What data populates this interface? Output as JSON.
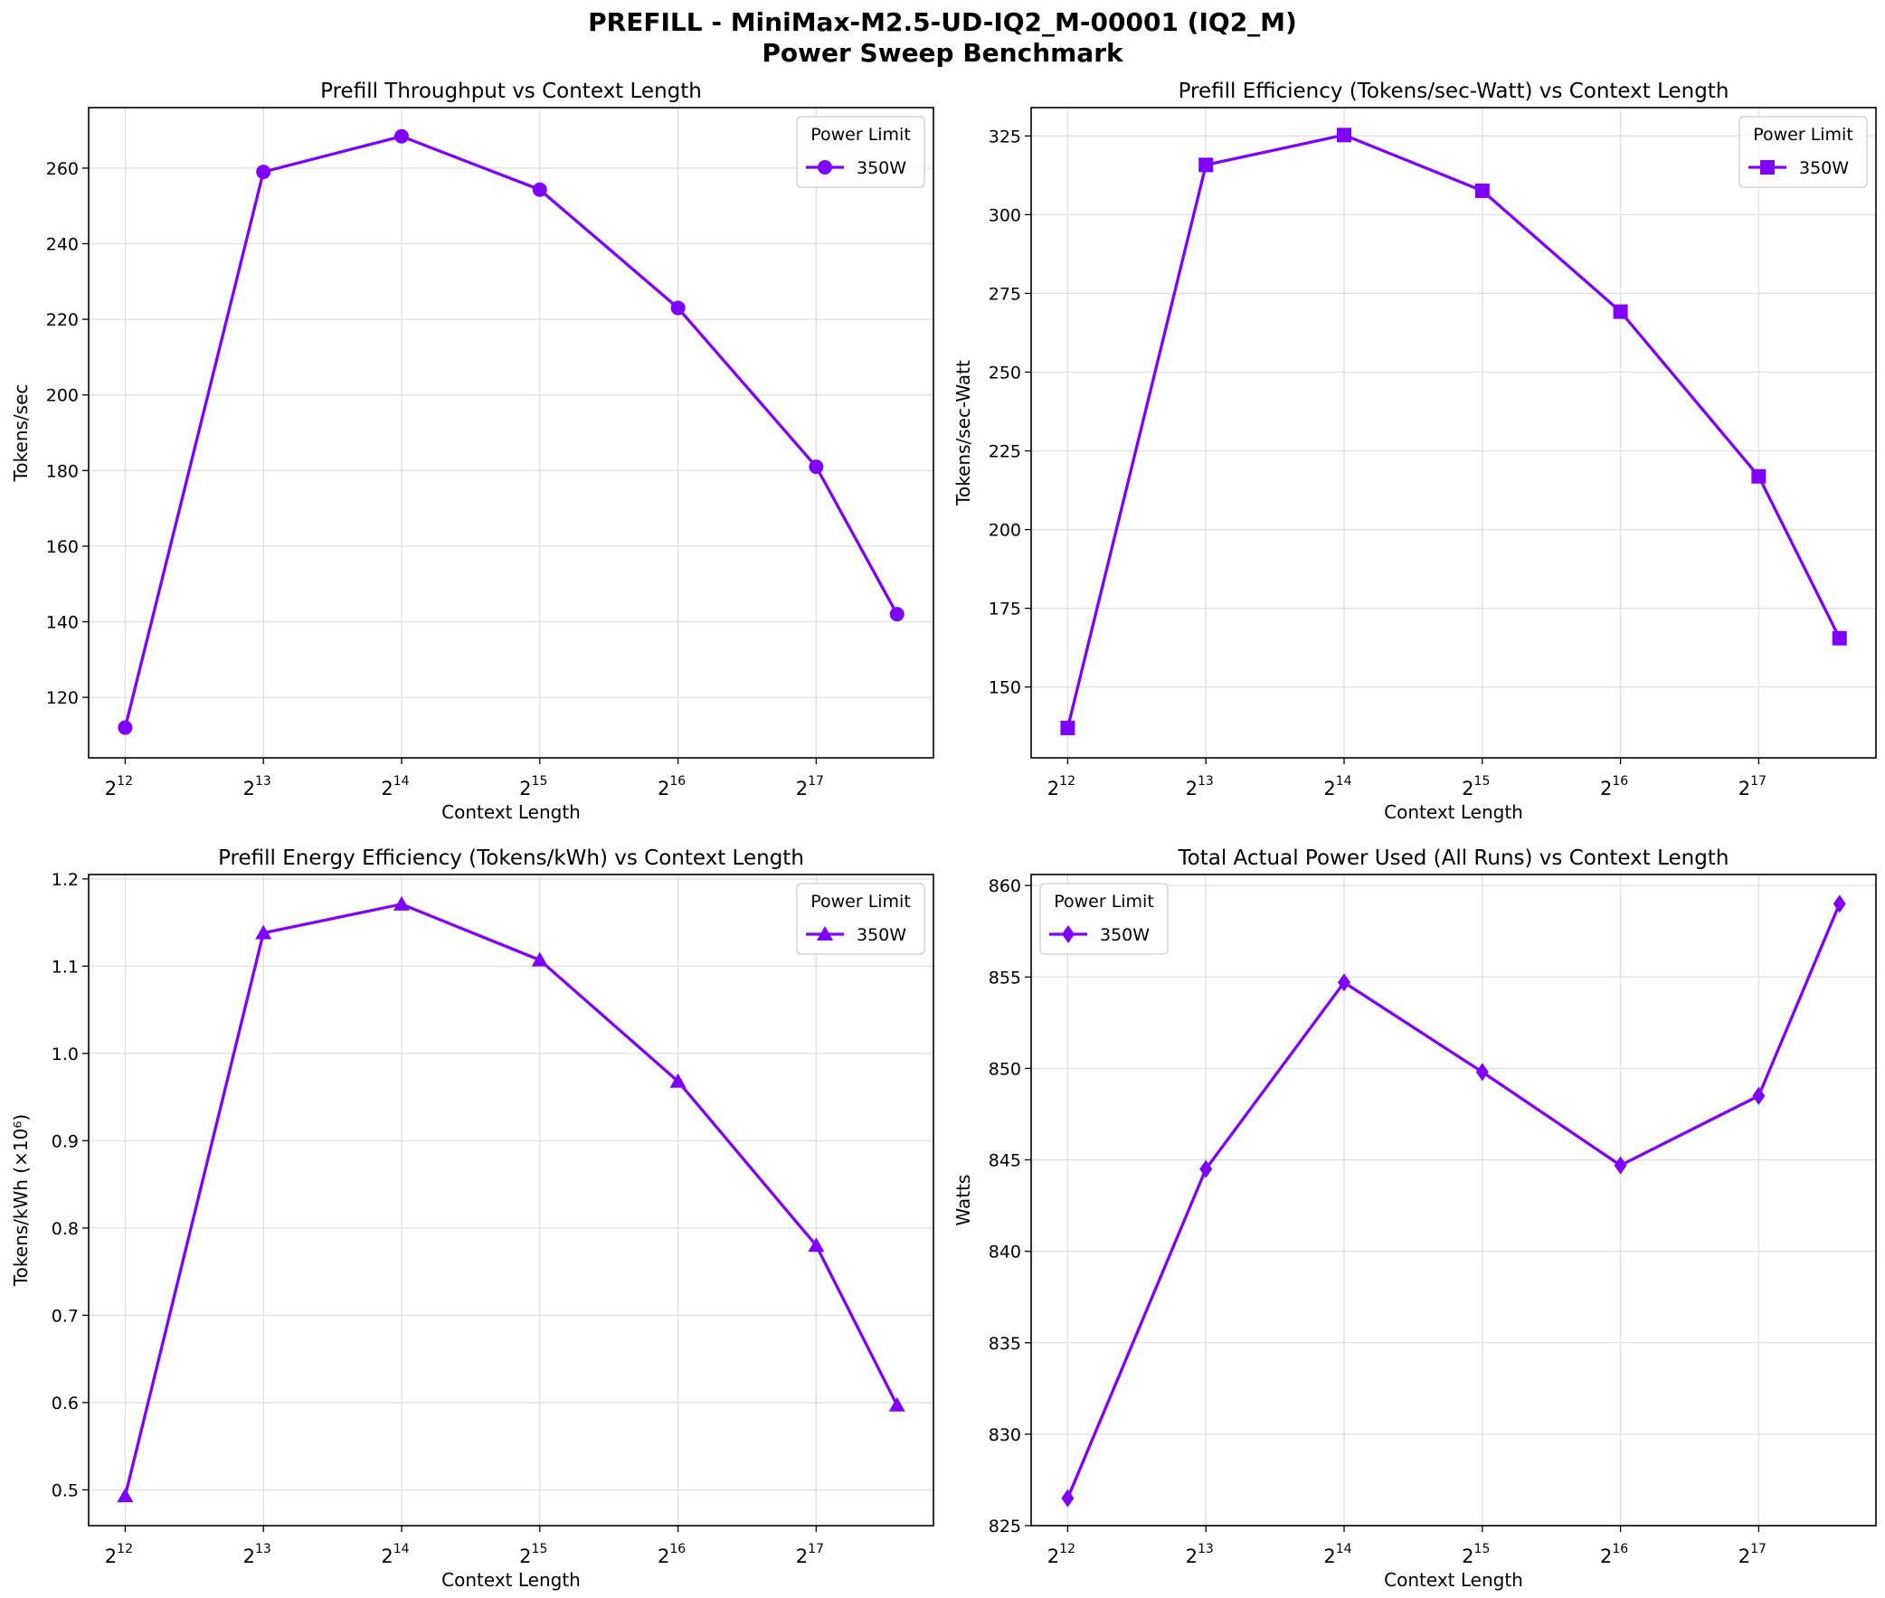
{
  "figure": {
    "title_line1": "PREFILL - MiniMax-M2.5-UD-IQ2_M-00001 (IQ2_M)",
    "title_line2": "Power Sweep Benchmark"
  },
  "colors": {
    "series": "#7f00ff",
    "grid": "#e0e0e0"
  },
  "chart_data": [
    {
      "type": "line",
      "title": "Prefill Throughput vs Context Length",
      "xlabel": "Context Length",
      "ylabel": "Tokens/sec",
      "xscale": "log2",
      "x": [
        4096,
        8192,
        16384,
        32768,
        65536,
        131072,
        196608
      ],
      "xticks": [
        {
          "base": "2",
          "exp": "12",
          "value": 4096
        },
        {
          "base": "2",
          "exp": "13",
          "value": 8192
        },
        {
          "base": "2",
          "exp": "14",
          "value": 16384
        },
        {
          "base": "2",
          "exp": "15",
          "value": 32768
        },
        {
          "base": "2",
          "exp": "16",
          "value": 65536
        },
        {
          "base": "2",
          "exp": "17",
          "value": 131072
        }
      ],
      "ylim": [
        104,
        276
      ],
      "yticks": [
        "120",
        "140",
        "160",
        "180",
        "200",
        "220",
        "240",
        "260"
      ],
      "marker": "circle",
      "legend_title": "Power Limit",
      "legend_position": "top-right",
      "grid": true,
      "series": [
        {
          "name": "350W",
          "values": [
            112,
            259,
            268.4,
            254.3,
            223,
            181,
            142
          ]
        }
      ]
    },
    {
      "type": "line",
      "title": "Prefill Efficiency (Tokens/sec-Watt) vs Context Length",
      "xlabel": "Context Length",
      "ylabel": "Tokens/sec-Watt",
      "xscale": "log2",
      "x": [
        4096,
        8192,
        16384,
        32768,
        65536,
        131072,
        196608
      ],
      "xticks": [
        {
          "base": "2",
          "exp": "12",
          "value": 4096
        },
        {
          "base": "2",
          "exp": "13",
          "value": 8192
        },
        {
          "base": "2",
          "exp": "14",
          "value": 16384
        },
        {
          "base": "2",
          "exp": "15",
          "value": 32768
        },
        {
          "base": "2",
          "exp": "16",
          "value": 65536
        },
        {
          "base": "2",
          "exp": "17",
          "value": 131072
        }
      ],
      "ylim": [
        127.5,
        334
      ],
      "yticks": [
        "150",
        "175",
        "200",
        "225",
        "250",
        "275",
        "300",
        "325"
      ],
      "marker": "square",
      "legend_title": "Power Limit",
      "legend_position": "top-right",
      "grid": true,
      "series": [
        {
          "name": "350W",
          "values": [
            137,
            315.8,
            325.3,
            307.6,
            269.2,
            216.9,
            165.5
          ]
        }
      ]
    },
    {
      "type": "line",
      "title": "Prefill Energy Efficiency (Tokens/kWh) vs Context Length",
      "xlabel": "Context Length",
      "ylabel": "Tokens/kWh (×10⁶)",
      "xscale": "log2",
      "x": [
        4096,
        8192,
        16384,
        32768,
        65536,
        131072,
        196608
      ],
      "xticks": [
        {
          "base": "2",
          "exp": "12",
          "value": 4096
        },
        {
          "base": "2",
          "exp": "13",
          "value": 8192
        },
        {
          "base": "2",
          "exp": "14",
          "value": 16384
        },
        {
          "base": "2",
          "exp": "15",
          "value": 32768
        },
        {
          "base": "2",
          "exp": "16",
          "value": 65536
        },
        {
          "base": "2",
          "exp": "17",
          "value": 131072
        }
      ],
      "ylim": [
        0.459,
        1.205
      ],
      "yticks": [
        "0.5",
        "0.6",
        "0.7",
        "0.8",
        "0.9",
        "1.0",
        "1.1",
        "1.2"
      ],
      "marker": "triangle",
      "legend_title": "Power Limit",
      "legend_position": "top-right",
      "grid": true,
      "series": [
        {
          "name": "350W",
          "values": [
            0.493,
            1.138,
            1.171,
            1.107,
            0.968,
            0.78,
            0.597
          ]
        }
      ]
    },
    {
      "type": "line",
      "title": "Total Actual Power Used (All Runs) vs Context Length",
      "xlabel": "Context Length",
      "ylabel": "Watts",
      "xscale": "log2",
      "x": [
        4096,
        8192,
        16384,
        32768,
        65536,
        131072,
        196608
      ],
      "xticks": [
        {
          "base": "2",
          "exp": "12",
          "value": 4096
        },
        {
          "base": "2",
          "exp": "13",
          "value": 8192
        },
        {
          "base": "2",
          "exp": "14",
          "value": 16384
        },
        {
          "base": "2",
          "exp": "15",
          "value": 32768
        },
        {
          "base": "2",
          "exp": "16",
          "value": 65536
        },
        {
          "base": "2",
          "exp": "17",
          "value": 131072
        }
      ],
      "ylim": [
        825,
        860.6
      ],
      "yticks": [
        "825",
        "830",
        "835",
        "840",
        "845",
        "850",
        "855",
        "860"
      ],
      "marker": "diamond",
      "legend_title": "Power Limit",
      "legend_position": "top-left",
      "grid": true,
      "series": [
        {
          "name": "350W",
          "values": [
            826.5,
            844.5,
            854.7,
            849.8,
            844.7,
            848.5,
            859
          ]
        }
      ]
    }
  ]
}
